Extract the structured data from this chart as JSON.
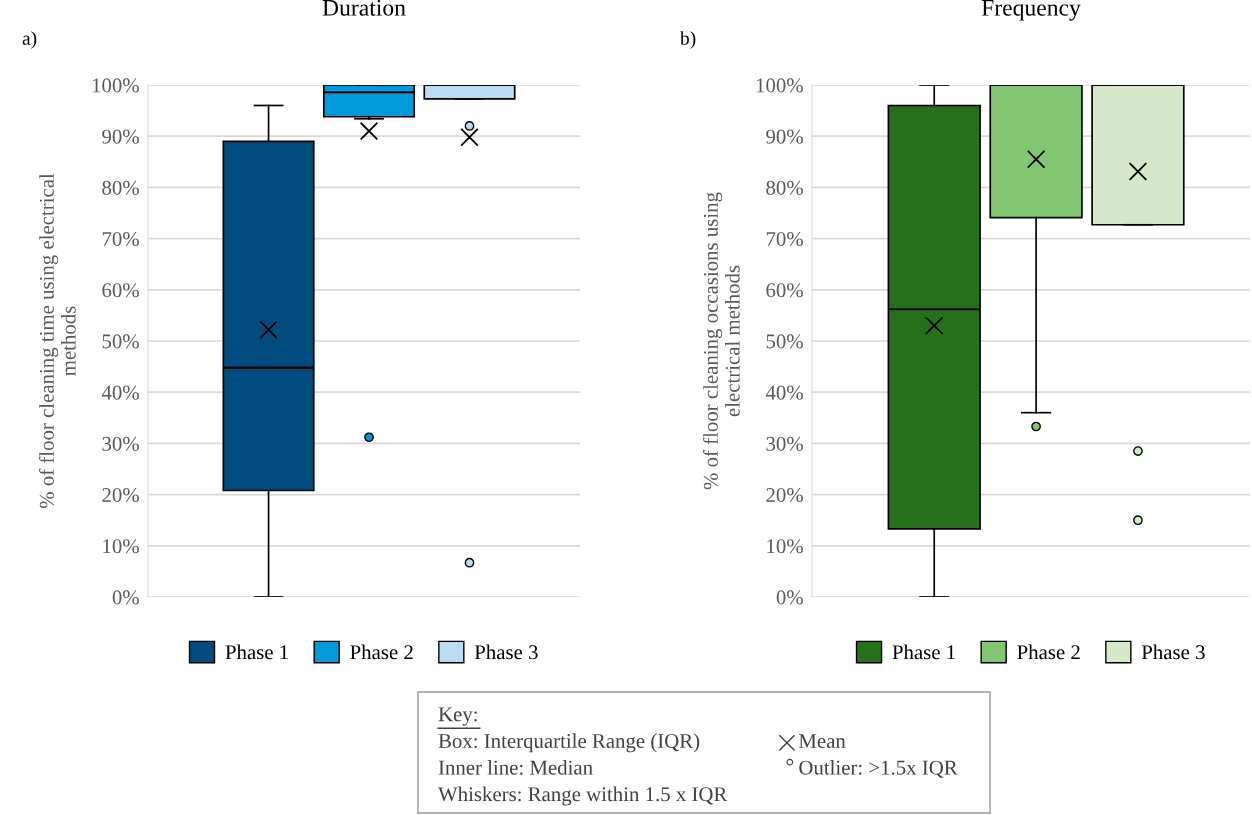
{
  "chart_data": [
    {
      "type": "box",
      "title": "Duration",
      "ylabel": "% of floor cleaning time using electrical\nmethods",
      "annotations": [
        "a)"
      ],
      "categories": [
        null
      ],
      "legend": "bottom",
      "grid": "y",
      "ylim": [
        0,
        100
      ],
      "yticks": [
        {
          "value": 0,
          "label": "0%"
        },
        {
          "value": 10,
          "label": "10%"
        },
        {
          "value": 20,
          "label": "20%"
        },
        {
          "value": 30,
          "label": "30%"
        },
        {
          "value": 40,
          "label": "40%"
        },
        {
          "value": 50,
          "label": "50%"
        },
        {
          "value": 60,
          "label": "60%"
        },
        {
          "value": 70,
          "label": "70%"
        },
        {
          "value": 80,
          "label": "80%"
        },
        {
          "value": 90,
          "label": "90%"
        },
        {
          "value": 100,
          "label": "100%"
        }
      ],
      "series": [
        {
          "name": "Phase 1",
          "color": "#004c7e",
          "boxes": [
            {
              "low": 0,
              "q1": 20.8,
              "median": 44.8,
              "q3": 89,
              "high": 96,
              "mean": 52.2
            }
          ]
        },
        {
          "name": "Phase 2",
          "color": "#0099d9",
          "boxes": [
            {
              "low": 93.4,
              "q1": 93.8,
              "median": 98.6,
              "q3": 100,
              "high": 100,
              "mean": 91,
              "outliers": [
                31.2
              ]
            }
          ]
        },
        {
          "name": "Phase 3",
          "color": "#bcdcf3",
          "boxes": [
            {
              "low": 97.3,
              "q1": 97.3,
              "median": 100,
              "q3": 100,
              "high": 100,
              "mean": 89.8,
              "outliers": [
                92,
                6.7
              ]
            }
          ]
        }
      ]
    },
    {
      "type": "box",
      "title": "Frequency",
      "ylabel": "% of floor cleaning occasions using\nelectrical methods",
      "annotations": [
        "b)"
      ],
      "categories": [
        null
      ],
      "legend": "bottom",
      "grid": "y",
      "ylim": [
        0,
        100
      ],
      "yticks": [
        {
          "value": 0,
          "label": "0%"
        },
        {
          "value": 10,
          "label": "10%"
        },
        {
          "value": 20,
          "label": "20%"
        },
        {
          "value": 30,
          "label": "30%"
        },
        {
          "value": 40,
          "label": "40%"
        },
        {
          "value": 50,
          "label": "50%"
        },
        {
          "value": 60,
          "label": "60%"
        },
        {
          "value": 70,
          "label": "70%"
        },
        {
          "value": 80,
          "label": "80%"
        },
        {
          "value": 90,
          "label": "90%"
        },
        {
          "value": 100,
          "label": "100%"
        }
      ],
      "series": [
        {
          "name": "Phase 1",
          "color": "#27701b",
          "boxes": [
            {
              "low": 0,
              "q1": 13.3,
              "median": 56.2,
              "q3": 96,
              "high": 100,
              "mean": 53
            }
          ]
        },
        {
          "name": "Phase 2",
          "color": "#82c672",
          "boxes": [
            {
              "low": 36,
              "q1": 74.1,
              "median": 100,
              "q3": 100,
              "high": 100,
              "mean": 85.5,
              "outliers": [
                33.3
              ]
            }
          ]
        },
        {
          "name": "Phase 3",
          "color": "#d5e8c9",
          "boxes": [
            {
              "low": 72.7,
              "q1": 72.7,
              "median": 100,
              "q3": 100,
              "high": 100,
              "mean": 83.1,
              "outliers": [
                28.5,
                15
              ]
            }
          ]
        }
      ]
    },
    {
      "type": "other",
      "title": "Key:",
      "annotations": [
        "Box: Interquartile Range (IQR)",
        "Inner line: Median",
        "Whiskers: Range within 1.5 x IQR",
        "Mean",
        "Outlier: >1.5x IQR"
      ]
    }
  ]
}
